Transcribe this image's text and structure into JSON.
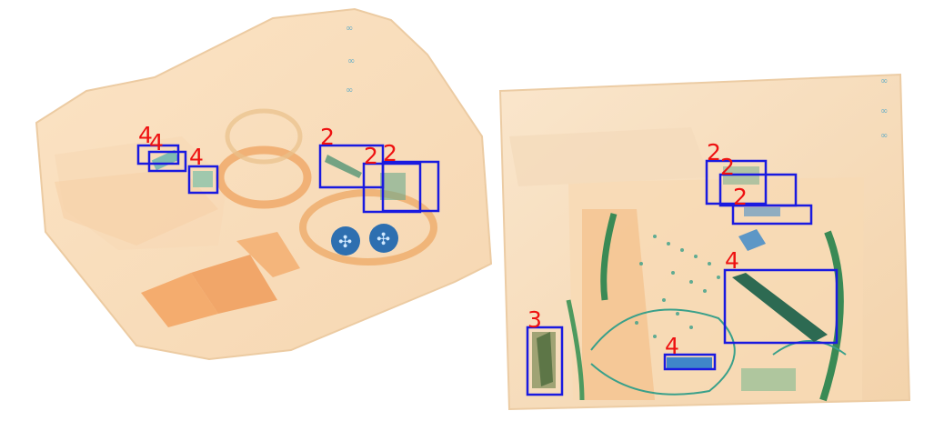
{
  "scene": {
    "background_color": "#ffffff",
    "box_color": "#1a1ae0",
    "label_color": "#ee1111",
    "luggage_tint": "#f4cfa0",
    "organic_tint": "#f0a55a",
    "metal_tint": "#3fa07a"
  },
  "detections": [
    {
      "label": "4"
    },
    {
      "label": "4"
    },
    {
      "label": "4"
    },
    {
      "label": "2"
    },
    {
      "label": "2"
    },
    {
      "label": "2"
    },
    {
      "label": "2"
    },
    {
      "label": "2"
    },
    {
      "label": "2"
    },
    {
      "label": "4"
    },
    {
      "label": "3"
    },
    {
      "label": "4"
    }
  ]
}
